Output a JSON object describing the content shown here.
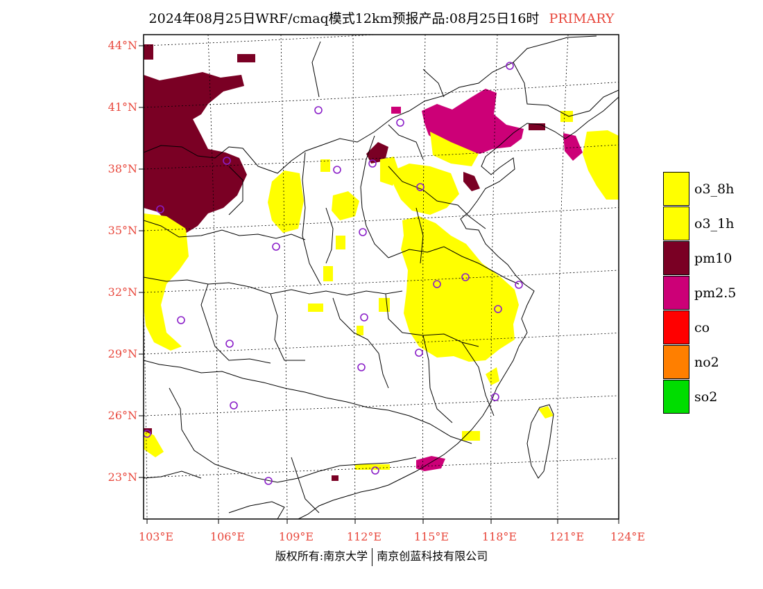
{
  "title": {
    "main": "2024年08月25日WRF/cmaq模式12km预报产品:08月25日16时",
    "tag": "PRIMARY"
  },
  "map": {
    "lat_labels": [
      "44°N",
      "41°N",
      "38°N",
      "35°N",
      "32°N",
      "29°N",
      "26°N",
      "23°N"
    ],
    "lon_labels": [
      "103°E",
      "106°E",
      "109°E",
      "112°E",
      "115°E",
      "118°E",
      "121°E",
      "124°E"
    ],
    "marker_color": "#8a1ec8",
    "colors": {
      "o3_8h": "#ffff00",
      "o3_1h": "#ffff00",
      "pm10": "#7a0024",
      "pm25": "#cc0077",
      "co": "#ff0000",
      "no2": "#ff7f00",
      "so2": "#00dd00"
    }
  },
  "legend": [
    {
      "label": "o3_8h",
      "color": "#ffff00"
    },
    {
      "label": "o3_1h",
      "color": "#ffff00"
    },
    {
      "label": "pm10",
      "color": "#7a0024"
    },
    {
      "label": "pm2.5",
      "color": "#cc0077"
    },
    {
      "label": "co",
      "color": "#ff0000"
    },
    {
      "label": "no2",
      "color": "#ff7f00"
    },
    {
      "label": "so2",
      "color": "#00dd00"
    }
  ],
  "footer": {
    "left": "版权所有:南京大学",
    "right": "南京创蓝科技有限公司"
  }
}
